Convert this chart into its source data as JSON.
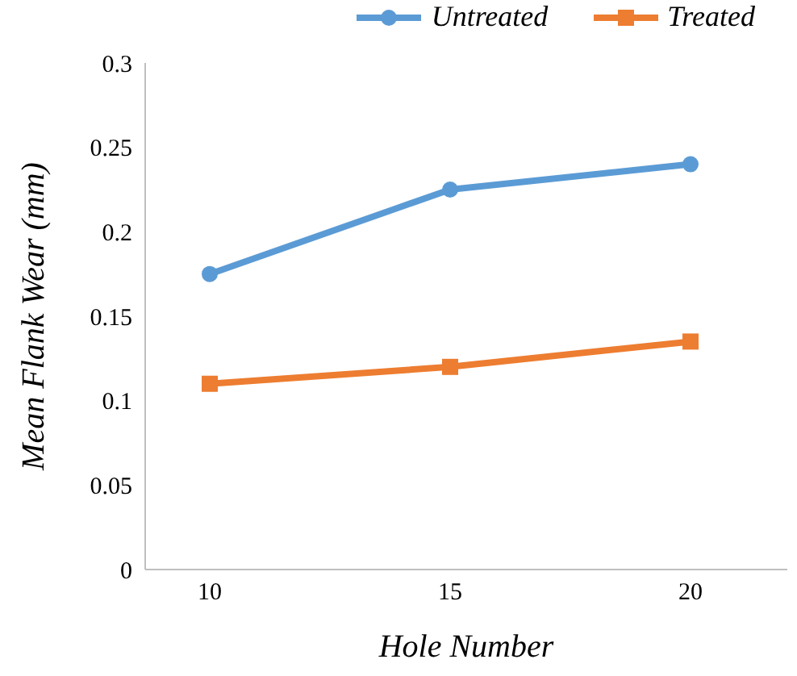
{
  "chart_data": {
    "type": "line",
    "xlabel": "Hole Number",
    "ylabel": "Mean Flank Wear (mm)",
    "categories": [
      "10",
      "15",
      "20"
    ],
    "series": [
      {
        "name": "Untreated",
        "color": "#5b9bd5",
        "marker": "circle",
        "values": [
          0.175,
          0.225,
          0.24
        ]
      },
      {
        "name": "Treated",
        "color": "#ed7d31",
        "marker": "square",
        "values": [
          0.11,
          0.12,
          0.135
        ]
      }
    ],
    "ylim": [
      0,
      0.3
    ],
    "yticks": [
      0,
      0.05,
      0.1,
      0.15,
      0.2,
      0.25,
      0.3
    ],
    "grid": false,
    "legend": "top right"
  }
}
